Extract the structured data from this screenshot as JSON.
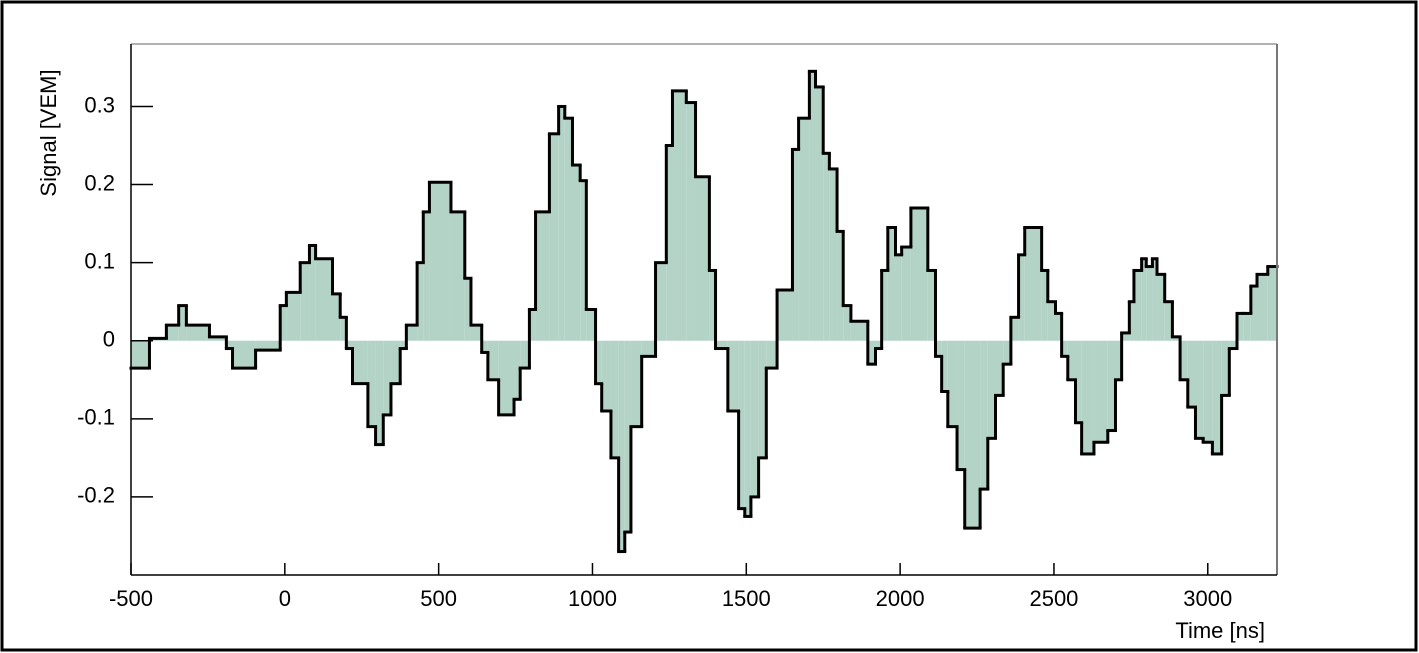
{
  "chart_data": {
    "type": "histogram",
    "xlabel": "Time [ns]",
    "ylabel": "Signal [VEM]",
    "fill_color": "#b3d3c7",
    "line_color": "#000000",
    "xlim": [
      -500,
      3225
    ],
    "ylim": [
      -0.3,
      0.38
    ],
    "xticks": [
      -500,
      0,
      500,
      1000,
      1500,
      2000,
      2500,
      3000
    ],
    "yticks": [
      -0.2,
      -0.1,
      0,
      0.1,
      0.2,
      0.3
    ],
    "bins": [
      -500,
      -440,
      -385,
      -345,
      -320,
      -245,
      -190,
      -170,
      -95,
      -15,
      5,
      50,
      80,
      100,
      155,
      180,
      200,
      220,
      270,
      295,
      320,
      345,
      375,
      395,
      430,
      450,
      470,
      540,
      585,
      605,
      640,
      660,
      695,
      745,
      765,
      795,
      815,
      860,
      890,
      910,
      935,
      960,
      980,
      1010,
      1030,
      1060,
      1085,
      1105,
      1125,
      1160,
      1205,
      1240,
      1260,
      1305,
      1335,
      1380,
      1400,
      1440,
      1475,
      1495,
      1515,
      1540,
      1565,
      1600,
      1650,
      1670,
      1705,
      1725,
      1750,
      1770,
      1795,
      1815,
      1840,
      1895,
      1920,
      1940,
      1960,
      1985,
      2005,
      2035,
      2090,
      2115,
      2135,
      2155,
      2185,
      2210,
      2260,
      2285,
      2310,
      2335,
      2360,
      2385,
      2405,
      2460,
      2480,
      2505,
      2525,
      2545,
      2570,
      2590,
      2630,
      2675,
      2700,
      2720,
      2745,
      2760,
      2785,
      2800,
      2820,
      2835,
      2860,
      2885,
      2910,
      2935,
      2960,
      2985,
      3015,
      3045,
      3070,
      3095,
      3115,
      3140,
      3160,
      3195,
      3225
    ],
    "values": [
      -0.035,
      0.003,
      0.02,
      0.045,
      0.02,
      0.005,
      -0.01,
      -0.035,
      -0.012,
      0.045,
      0.062,
      0.1,
      0.122,
      0.105,
      0.06,
      0.03,
      -0.01,
      -0.055,
      -0.11,
      -0.133,
      -0.095,
      -0.055,
      -0.01,
      0.02,
      0.1,
      0.165,
      0.203,
      0.165,
      0.08,
      0.02,
      -0.015,
      -0.05,
      -0.095,
      -0.075,
      -0.035,
      0.04,
      0.165,
      0.265,
      0.3,
      0.285,
      0.225,
      0.205,
      0.04,
      -0.055,
      -0.09,
      -0.15,
      -0.27,
      -0.245,
      -0.11,
      -0.02,
      0.1,
      0.25,
      0.32,
      0.305,
      0.21,
      0.09,
      -0.01,
      -0.09,
      -0.215,
      -0.225,
      -0.2,
      -0.15,
      -0.035,
      0.065,
      0.245,
      0.285,
      0.345,
      0.325,
      0.24,
      0.22,
      0.14,
      0.045,
      0.025,
      -0.03,
      -0.01,
      0.09,
      0.145,
      0.11,
      0.12,
      0.17,
      0.09,
      -0.02,
      -0.065,
      -0.11,
      -0.165,
      -0.24,
      -0.19,
      -0.125,
      -0.07,
      -0.03,
      0.03,
      0.11,
      0.145,
      0.09,
      0.05,
      0.035,
      -0.02,
      -0.05,
      -0.105,
      -0.145,
      -0.13,
      -0.115,
      -0.05,
      0.01,
      0.05,
      0.09,
      0.105,
      0.095,
      0.105,
      0.085,
      0.05,
      0.005,
      -0.05,
      -0.085,
      -0.125,
      -0.13,
      -0.145,
      -0.07,
      -0.01,
      0.035,
      0.035,
      0.07,
      0.085,
      0.095
    ]
  }
}
